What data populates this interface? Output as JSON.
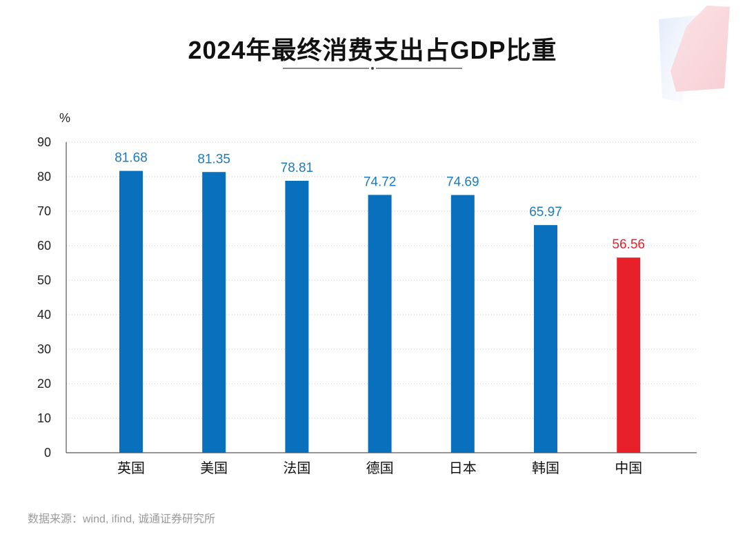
{
  "colors": {
    "bar": "#0870bd",
    "bar_highlight": "#e8202a",
    "value_label": "#1b7bbd",
    "value_label_highlight": "#e8202a",
    "grid": "#c8c8c8"
  },
  "chart_data": {
    "type": "bar",
    "title": "2024年最终消费支出占GDP比重",
    "ylabel": "%",
    "xlabel": "",
    "ylim": [
      0,
      90
    ],
    "yticks": [
      0,
      10,
      20,
      30,
      40,
      50,
      60,
      70,
      80,
      90
    ],
    "grid": "horizontal-dotted",
    "categories": [
      "英国",
      "美国",
      "法国",
      "德国",
      "日本",
      "韩国",
      "中国"
    ],
    "values": [
      81.68,
      81.35,
      78.81,
      74.72,
      74.69,
      65.97,
      56.56
    ],
    "value_labels": [
      "81.68",
      "81.35",
      "78.81",
      "74.72",
      "74.69",
      "65.97",
      "56.56"
    ],
    "highlight_category": "中国"
  },
  "footer": {
    "source": "数据来源：wind, ifind, 诚通证券研究所"
  }
}
